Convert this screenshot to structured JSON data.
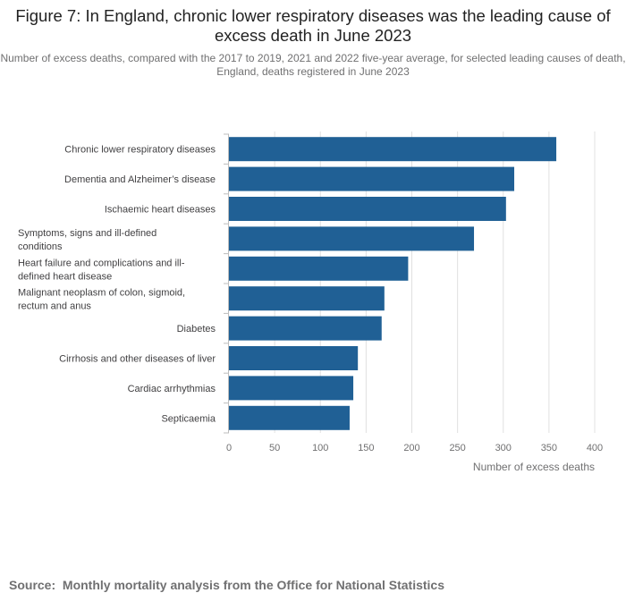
{
  "chart_data": {
    "type": "bar",
    "orientation": "horizontal",
    "title": "Figure 7: In England, chronic lower respiratory diseases was the leading cause of excess death in June 2023",
    "subtitle": "Number of excess deaths, compared with the 2017 to 2019, 2021 and 2022 five-year average, for selected leading causes of death, England, deaths registered in June 2023",
    "categories": [
      [
        "Chronic lower respiratory diseases"
      ],
      [
        "Dementia and Alzheimer’s disease"
      ],
      [
        "Ischaemic heart diseases"
      ],
      [
        "Symptoms, signs and ill-defined",
        "conditions"
      ],
      [
        "Heart failure and complications and ill-",
        "defined heart disease"
      ],
      [
        "Malignant neoplasm of colon, sigmoid,",
        "rectum and anus"
      ],
      [
        "Diabetes"
      ],
      [
        "Cirrhosis and other diseases of liver"
      ],
      [
        "Cardiac arrhythmias"
      ],
      [
        "Septicaemia"
      ]
    ],
    "values": [
      358,
      312,
      303,
      268,
      196,
      170,
      167,
      141,
      136,
      132
    ],
    "xlim": [
      0,
      400
    ],
    "xticks": [
      0,
      50,
      100,
      150,
      200,
      250,
      300,
      350,
      400
    ],
    "xlabel": "Number of excess deaths",
    "ylabel": "",
    "grid": true,
    "bar_color": "#206095",
    "grid_color": "#e0e0e0"
  },
  "source": {
    "label": "Source:",
    "text": "Monthly mortality analysis from the Office for National Statistics"
  }
}
